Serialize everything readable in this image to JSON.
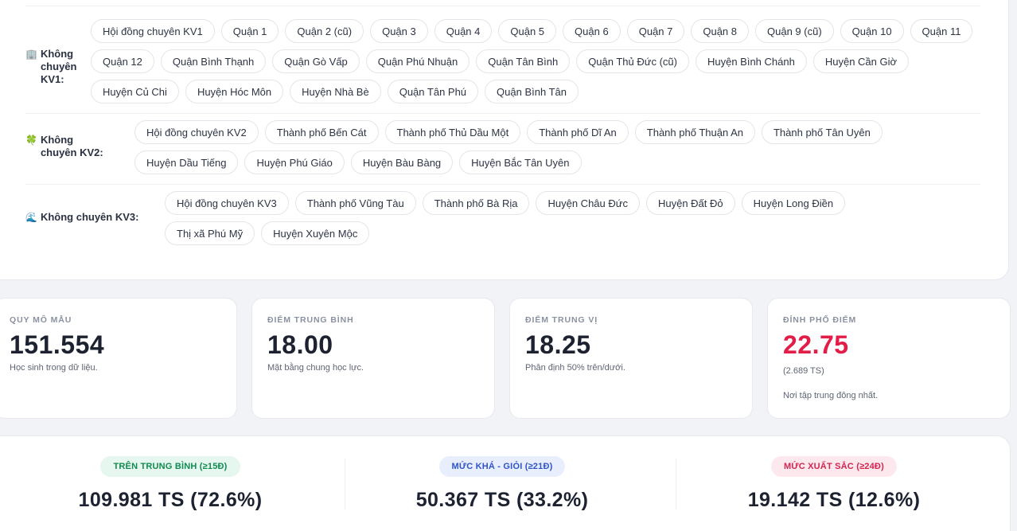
{
  "regions": [
    {
      "icon": "🏢",
      "label": "Không chuyên KV1:",
      "chips": [
        "Hội đồng chuyên KV1",
        "Quận 1",
        "Quận 2 (cũ)",
        "Quận 3",
        "Quận 4",
        "Quận 5",
        "Quận 6",
        "Quận 7",
        "Quận 8",
        "Quận 9 (cũ)",
        "Quận 10",
        "Quận 11",
        "Quận 12",
        "Quận Bình Thạnh",
        "Quận Gò Vấp",
        "Quận Phú Nhuận",
        "Quận Tân Bình",
        "Quận Thủ Đức (cũ)",
        "Huyện Bình Chánh",
        "Huyện Cần Giờ",
        "Huyện Củ Chi",
        "Huyện Hóc Môn",
        "Huyện Nhà Bè",
        "Quận Tân Phú",
        "Quận Bình Tân"
      ]
    },
    {
      "icon": "🍀",
      "label": "Không chuyên KV2:",
      "chips": [
        "Hội đồng chuyên KV2",
        "Thành phố Bến Cát",
        "Thành phố Thủ Dầu Một",
        "Thành phố Dĩ An",
        "Thành phố Thuận An",
        "Thành phố Tân Uyên",
        "Huyện Dầu Tiếng",
        "Huyện Phú Giáo",
        "Huyện Bàu Bàng",
        "Huyện Bắc Tân Uyên"
      ]
    },
    {
      "icon": "🌊",
      "label": "Không chuyên KV3:",
      "chips": [
        "Hội đồng chuyên KV3",
        "Thành phố Vũng Tàu",
        "Thành phố Bà Rịa",
        "Huyện Châu Đức",
        "Huyện Đất Đỏ",
        "Huyện Long Điền",
        "Thị xã Phú Mỹ",
        "Huyện Xuyên Mộc"
      ]
    }
  ],
  "stats": [
    {
      "label": "QUY MÔ MẪU",
      "value": "151.554",
      "sub": "Học sinh trong dữ liệu."
    },
    {
      "label": "ĐIỂM TRUNG BÌNH",
      "value": "18.00",
      "sub": "Mặt bằng chung học lực."
    },
    {
      "label": "ĐIỂM TRUNG VỊ",
      "value": "18.25",
      "sub": "Phân định 50% trên/dưới."
    },
    {
      "label": "ĐỈNH PHỔ ĐIỂM",
      "value": "22.75",
      "sub": "(2.689 TS)",
      "sub2": "Nơi tập trung đông nhất."
    }
  ],
  "levels": [
    {
      "label": "TRÊN TRUNG BÌNH (≥15Đ)",
      "value": "109.981 TS (72.6%)",
      "color": "#118a4f"
    },
    {
      "label": "MỨC KHÁ - GIỎI (≥21Đ)",
      "value": "50.367 TS (33.2%)",
      "color": "#2f55c9"
    },
    {
      "label": "MỨC XUẤT SẮC (≥24Đ)",
      "value": "19.142 TS (12.6%)",
      "color": "#d1264f"
    }
  ],
  "colors": {
    "accent_red": "#e11d48"
  }
}
